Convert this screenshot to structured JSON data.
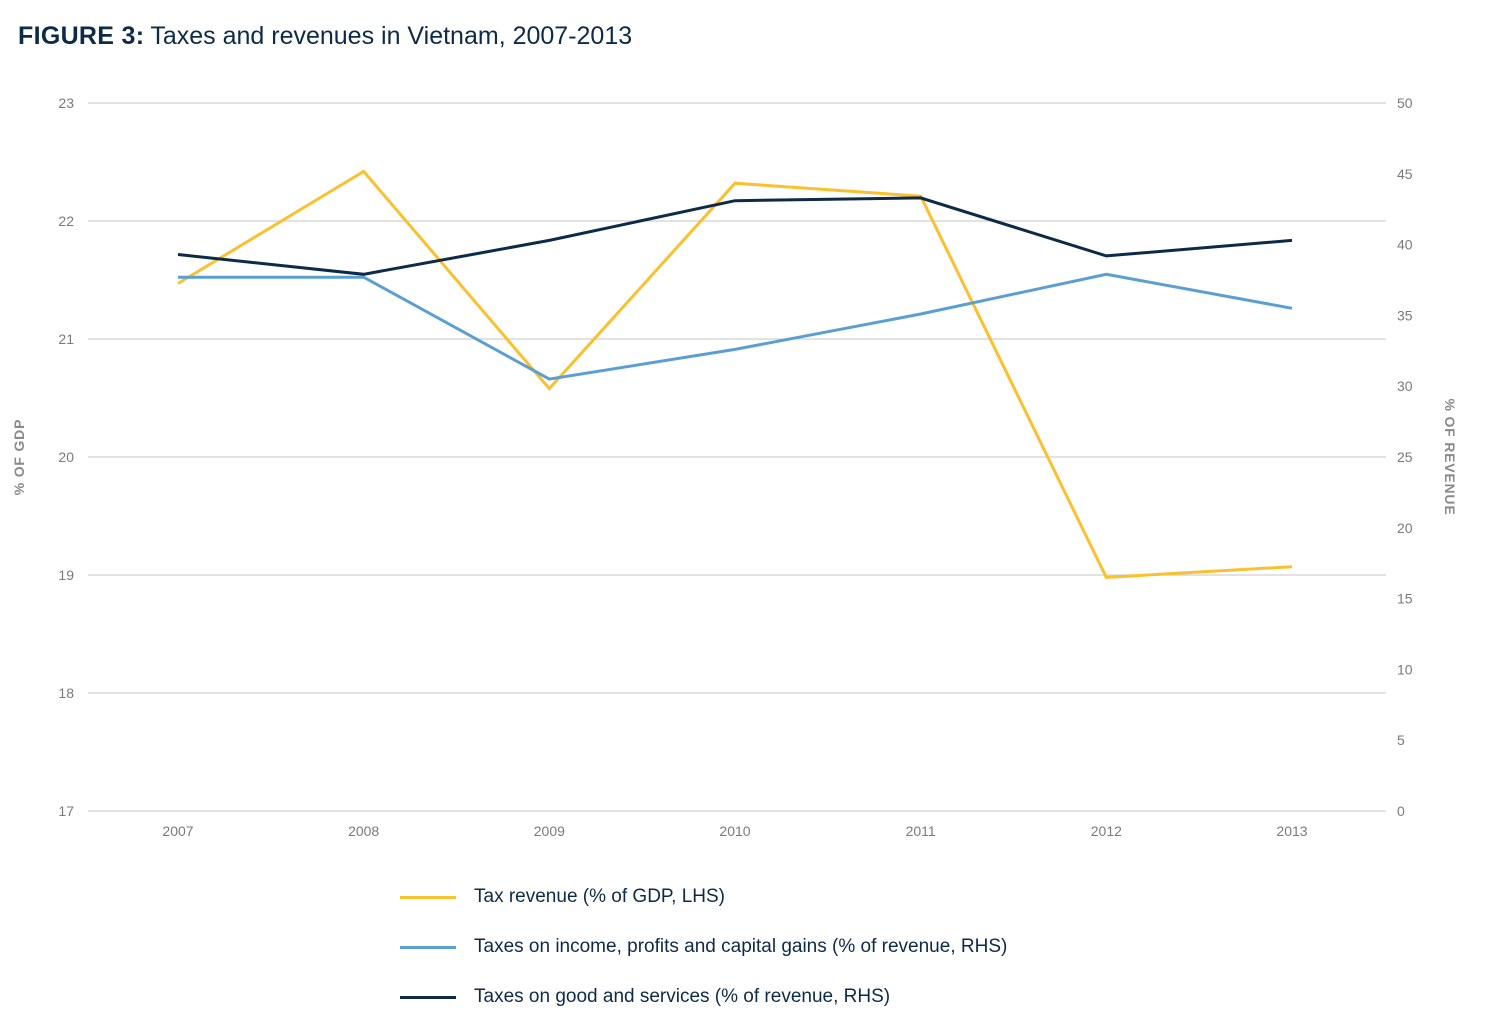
{
  "title": {
    "figure_label": "FIGURE 3:",
    "text": "Taxes and revenues in Vietnam, 2007-2013"
  },
  "colors": {
    "tax_revenue": "#fbc02d",
    "income_taxes": "#5a9fd4",
    "goods_services": "#0d2a47",
    "grid": "#d0d0d0"
  },
  "chart_data": {
    "type": "line",
    "title": "Taxes and revenues in Vietnam, 2007-2013",
    "x": [
      "2007",
      "2008",
      "2009",
      "2010",
      "2011",
      "2012",
      "2013"
    ],
    "xlabel": "",
    "ylabel_left": "% OF GDP",
    "ylabel_right": "% OF REVENUE",
    "ylim_left": [
      17,
      23
    ],
    "ylim_right": [
      0,
      50
    ],
    "yticks_left": [
      "17",
      "18",
      "19",
      "20",
      "21",
      "22",
      "23"
    ],
    "yticks_right": [
      "0",
      "5",
      "10",
      "15",
      "20",
      "25",
      "30",
      "35",
      "40",
      "45",
      "50"
    ],
    "grid": true,
    "legend_position": "bottom",
    "series": [
      {
        "name": "Tax revenue (% of GDP, LHS)",
        "axis": "left",
        "color": "#fbc02d",
        "values": [
          21.47,
          22.42,
          20.58,
          22.32,
          22.21,
          18.98,
          19.07
        ]
      },
      {
        "name": "Taxes on income, profits and capital gains (% of revenue, RHS)",
        "axis": "right",
        "color": "#5a9fd4",
        "values": [
          37.7,
          37.7,
          30.5,
          32.6,
          35.1,
          37.9,
          35.5
        ]
      },
      {
        "name": "Taxes on good and services (% of revenue, RHS)",
        "axis": "right",
        "color": "#0d2a47",
        "values": [
          39.3,
          37.9,
          40.3,
          43.1,
          43.3,
          39.2,
          40.3
        ]
      }
    ]
  }
}
